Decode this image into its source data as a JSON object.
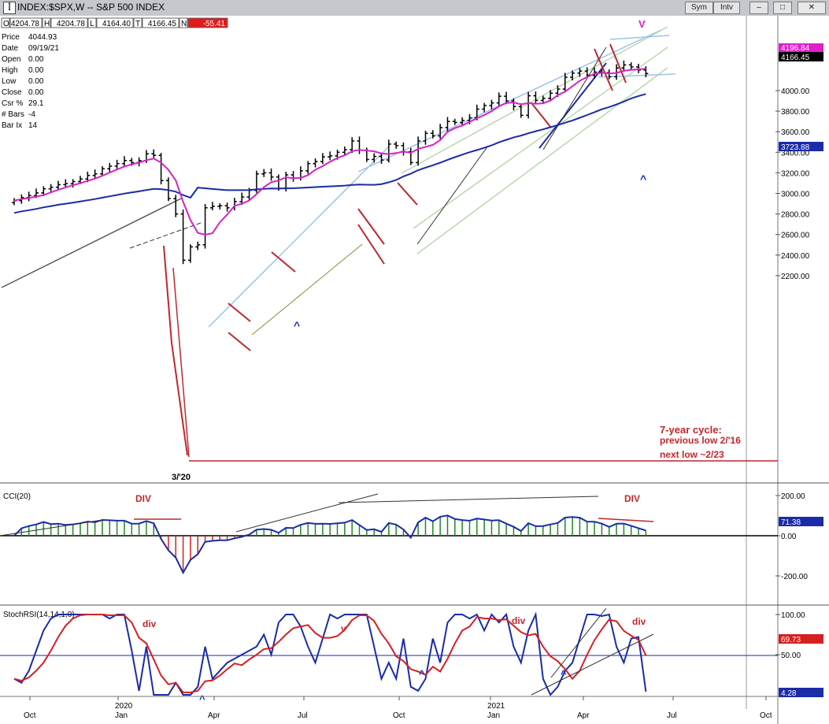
{
  "window": {
    "title": "INDEX:$SPX,W -- S&P 500 INDEX",
    "sym_button": "Sym",
    "int_button": "Intv"
  },
  "quote_bar": [
    {
      "key": "O",
      "val": "4204.78"
    },
    {
      "key": "H",
      "val": "4204.78"
    },
    {
      "key": "L",
      "val": "4164.40"
    },
    {
      "key": "T",
      "val": "4166.45"
    },
    {
      "key": "N",
      "val": "-55.41"
    }
  ],
  "info_panel": [
    {
      "k": "Price",
      "v": "4044.93"
    },
    {
      "k": "Date",
      "v": "09/19/21"
    },
    {
      "k": "Open",
      "v": "0.00"
    },
    {
      "k": "High",
      "v": "0.00"
    },
    {
      "k": "Low",
      "v": "0.00"
    },
    {
      "k": "Close",
      "v": "0.00"
    },
    {
      "k": "Csr %",
      "v": "29.1"
    },
    {
      "k": "# Bars",
      "v": "-4"
    },
    {
      "k": "Bar Ix",
      "v": "14"
    }
  ],
  "chart_data": [
    {
      "type": "ohlc",
      "title": "S&P 500 INDEX (weekly)",
      "ylim": [
        2100,
        4300
      ],
      "y_ticks": [
        "4000.00",
        "3800.00",
        "3600.00",
        "3400.00",
        "3200.00",
        "3000.00",
        "2800.00",
        "2600.00",
        "2400.00",
        "2200.00"
      ],
      "x_ticks": [
        "Oct",
        "2020\nJan",
        "Apr",
        "Jul",
        "Oct",
        "2021\nJan",
        "Apr",
        "Jul",
        "Oct"
      ],
      "markers": {
        "price_highlight": "4196.84",
        "last": "4166.45",
        "ma_last": "3723.88"
      },
      "annotations": {
        "cycle_title": "7-year cycle:",
        "cycle_prev": "previous low 2/'16",
        "cycle_next": "next low ~2/23",
        "low_label": "3/'20",
        "v_top": "V",
        "caret_1": "^",
        "caret_2": "^",
        "caret_3": "^"
      },
      "closes": [
        2930,
        2960,
        2980,
        3005,
        3045,
        3060,
        3085,
        3095,
        3115,
        3140,
        3175,
        3190,
        3240,
        3265,
        3290,
        3320,
        3300,
        3320,
        3385,
        3370,
        3125,
        2950,
        2800,
        2350,
        2480,
        2500,
        2860,
        2875,
        2880,
        2860,
        2920,
        2965,
        3030,
        3190,
        3200,
        3160,
        3050,
        3180,
        3150,
        3220,
        3290,
        3310,
        3355,
        3365,
        3400,
        3425,
        3510,
        3420,
        3330,
        3360,
        3325,
        3480,
        3465,
        3405,
        3300,
        3510,
        3585,
        3560,
        3640,
        3700,
        3690,
        3710,
        3735,
        3820,
        3855,
        3880,
        3945,
        3900,
        3845,
        3760,
        3950,
        3905,
        3925,
        3975,
        4015,
        4130,
        4170,
        4190,
        4150,
        4180,
        4175,
        4135,
        4220,
        4250,
        4230,
        4200,
        4166
      ],
      "ma_magenta_last": 4160,
      "ma_blue_last": 3724
    },
    {
      "type": "bar",
      "title": "CCI(20)",
      "ylim": [
        -300,
        220
      ],
      "y_ticks": [
        "200.00",
        "0.00",
        "-200.00"
      ],
      "last_value": "71.38",
      "annotations": {
        "div_left": "DIV",
        "div_right": "DIV"
      }
    },
    {
      "type": "line",
      "title": "StochRSI(14,14,1,0)",
      "ylim": [
        0,
        100
      ],
      "y_ticks": [
        "100.00",
        "50.00"
      ],
      "last_values": {
        "slow": "69.73",
        "fast": "4.28"
      },
      "annotations": {
        "div_1": "div",
        "div_2": "div",
        "div_3": "div",
        "v_1": "v",
        "caret_1": "^",
        "caret_2": "^",
        "caret_3": "^"
      }
    }
  ]
}
